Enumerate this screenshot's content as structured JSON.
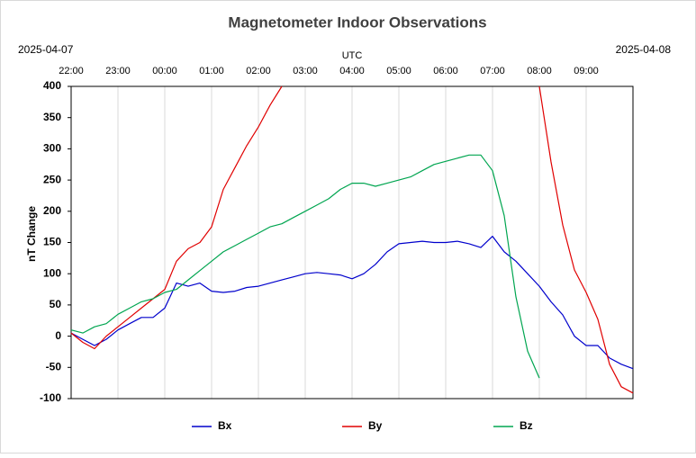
{
  "chart_data": {
    "type": "line",
    "title": "Magnetometer Indoor Observations",
    "date_start": "2025-04-07",
    "date_end": "2025-04-08",
    "x_label": "UTC",
    "y_label": "nT Change",
    "x": [
      0,
      0.25,
      0.5,
      0.75,
      1,
      1.25,
      1.5,
      1.75,
      2,
      2.25,
      2.5,
      2.75,
      3,
      3.25,
      3.5,
      3.75,
      4,
      4.25,
      4.5,
      4.75,
      5,
      5.25,
      5.5,
      5.75,
      6,
      6.25,
      6.5,
      6.75,
      7,
      7.25,
      7.5,
      7.75,
      8,
      8.25,
      8.5,
      8.75,
      9,
      9.25,
      9.5,
      9.75,
      10,
      10.25,
      10.5,
      10.75,
      11,
      11.25,
      11.5,
      11.75,
      12
    ],
    "xlim": [
      0,
      12
    ],
    "xticks": [
      {
        "value": 0,
        "label": "22:00"
      },
      {
        "value": 1,
        "label": "23:00"
      },
      {
        "value": 2,
        "label": "00:00"
      },
      {
        "value": 3,
        "label": "01:00"
      },
      {
        "value": 4,
        "label": "02:00"
      },
      {
        "value": 5,
        "label": "03:00"
      },
      {
        "value": 6,
        "label": "04:00"
      },
      {
        "value": 7,
        "label": "05:00"
      },
      {
        "value": 8,
        "label": "06:00"
      },
      {
        "value": 9,
        "label": "07:00"
      },
      {
        "value": 10,
        "label": "08:00"
      },
      {
        "value": 11,
        "label": "09:00"
      }
    ],
    "ylim": [
      -100,
      400
    ],
    "yticks": [
      -100,
      -50,
      0,
      50,
      100,
      150,
      200,
      250,
      300,
      350,
      400
    ],
    "grid": "x",
    "legend": "bottom",
    "series": [
      {
        "name": "Bx",
        "color": "#0000cc",
        "values": [
          5,
          -5,
          -15,
          -5,
          10,
          20,
          30,
          30,
          45,
          85,
          80,
          85,
          72,
          70,
          72,
          78,
          80,
          85,
          90,
          95,
          100,
          102,
          100,
          98,
          92,
          100,
          115,
          135,
          148,
          150,
          152,
          150,
          150,
          152,
          148,
          142,
          160,
          135,
          120,
          100,
          80,
          55,
          34,
          0,
          -15,
          -15,
          -35,
          -45,
          -52
        ]
      },
      {
        "name": "By",
        "color": "#e00000",
        "values": [
          5,
          -10,
          -20,
          0,
          15,
          30,
          45,
          60,
          75,
          120,
          140,
          150,
          175,
          235,
          270,
          305,
          335,
          370,
          400,
          null,
          null,
          null,
          null,
          null,
          null,
          null,
          null,
          null,
          null,
          null,
          null,
          null,
          null,
          null,
          null,
          null,
          null,
          null,
          null,
          null,
          400,
          279,
          178,
          106,
          70,
          27,
          -45,
          -81,
          -91
        ]
      },
      {
        "name": "Bz",
        "color": "#00a550",
        "values": [
          10,
          5,
          15,
          20,
          35,
          45,
          55,
          60,
          70,
          75,
          90,
          105,
          120,
          135,
          145,
          155,
          165,
          175,
          180,
          190,
          200,
          210,
          220,
          235,
          245,
          245,
          240,
          245,
          250,
          255,
          265,
          275,
          280,
          285,
          290,
          290,
          265,
          193,
          63,
          -24,
          -67,
          null,
          null,
          null,
          null,
          null,
          null,
          null,
          null
        ]
      }
    ]
  }
}
